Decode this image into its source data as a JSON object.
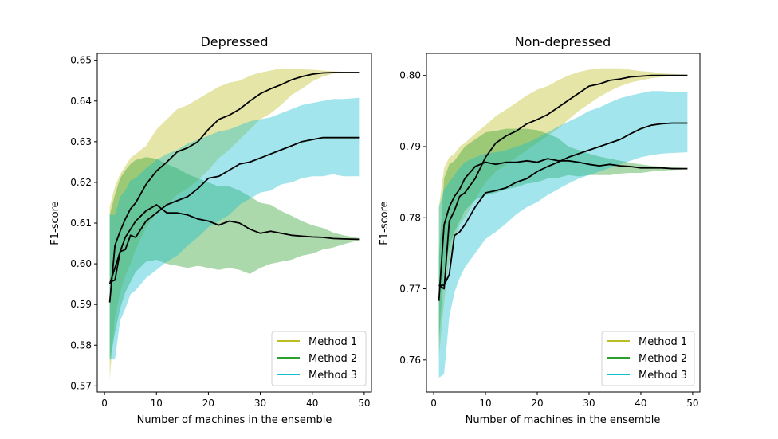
{
  "chart_data": [
    {
      "type": "line",
      "title": "Depressed",
      "xlabel": "Number of machines in the ensemble",
      "ylabel": "F1-score",
      "xlim": [
        -1.4,
        51.4
      ],
      "ylim": [
        0.5685,
        0.6517
      ],
      "xticks": [
        0,
        10,
        20,
        30,
        40,
        50
      ],
      "yticks": [
        0.57,
        0.58,
        0.59,
        0.6,
        0.61,
        0.62,
        0.63,
        0.64,
        0.65
      ],
      "ytick_labels": [
        "0.57",
        "0.58",
        "0.59",
        "0.60",
        "0.61",
        "0.62",
        "0.63",
        "0.64",
        "0.65"
      ],
      "legend_position": "lower-right",
      "series": [
        {
          "name": "Method 1",
          "color": "#bcbd22",
          "x": [
            1,
            2,
            3,
            4,
            5,
            6,
            8,
            10,
            12,
            14,
            16,
            18,
            20,
            22,
            24,
            26,
            28,
            30,
            32,
            34,
            36,
            38,
            40,
            42,
            44,
            46,
            49
          ],
          "mean": [
            0.5905,
            0.6045,
            0.608,
            0.611,
            0.6135,
            0.615,
            0.6195,
            0.6228,
            0.625,
            0.6275,
            0.6285,
            0.63,
            0.633,
            0.6355,
            0.6365,
            0.638,
            0.64,
            0.6418,
            0.643,
            0.644,
            0.6452,
            0.646,
            0.6466,
            0.6469,
            0.647,
            0.647,
            0.647
          ],
          "lower": [
            0.5715,
            0.587,
            0.593,
            0.597,
            0.6,
            0.6035,
            0.609,
            0.6125,
            0.6145,
            0.617,
            0.6185,
            0.6205,
            0.623,
            0.626,
            0.628,
            0.6305,
            0.633,
            0.6355,
            0.637,
            0.639,
            0.6415,
            0.643,
            0.6448,
            0.646,
            0.6467,
            0.6469,
            0.647
          ],
          "upper": [
            0.614,
            0.619,
            0.622,
            0.624,
            0.626,
            0.627,
            0.629,
            0.633,
            0.6355,
            0.638,
            0.639,
            0.6405,
            0.642,
            0.6435,
            0.6445,
            0.645,
            0.6462,
            0.647,
            0.6475,
            0.648,
            0.648,
            0.6478,
            0.6477,
            0.6475,
            0.6473,
            0.6472,
            0.6471
          ]
        },
        {
          "name": "Method 2",
          "color": "#2ca02c",
          "x": [
            1,
            2,
            3,
            4,
            5,
            6,
            8,
            10,
            12,
            14,
            16,
            18,
            20,
            22,
            24,
            26,
            28,
            30,
            32,
            34,
            36,
            38,
            40,
            42,
            44,
            46,
            49
          ],
          "mean": [
            0.595,
            0.599,
            0.603,
            0.6065,
            0.6085,
            0.6105,
            0.613,
            0.6145,
            0.6125,
            0.6125,
            0.612,
            0.611,
            0.6105,
            0.6095,
            0.6105,
            0.61,
            0.6085,
            0.6075,
            0.608,
            0.6075,
            0.607,
            0.6068,
            0.6066,
            0.6065,
            0.6062,
            0.6061,
            0.606
          ],
          "lower": [
            0.576,
            0.583,
            0.589,
            0.593,
            0.5955,
            0.598,
            0.6005,
            0.601,
            0.6,
            0.5995,
            0.599,
            0.5995,
            0.599,
            0.5985,
            0.599,
            0.5985,
            0.5975,
            0.599,
            0.6,
            0.6005,
            0.601,
            0.602,
            0.6025,
            0.6035,
            0.604,
            0.6048,
            0.6058
          ],
          "upper": [
            0.612,
            0.617,
            0.621,
            0.623,
            0.6245,
            0.6255,
            0.6262,
            0.6258,
            0.6245,
            0.6235,
            0.622,
            0.621,
            0.62,
            0.619,
            0.619,
            0.618,
            0.6165,
            0.615,
            0.6145,
            0.613,
            0.6118,
            0.6105,
            0.6095,
            0.6088,
            0.6077,
            0.607,
            0.6063
          ]
        },
        {
          "name": "Method 3",
          "color": "#17becf",
          "x": [
            1,
            2,
            3,
            4,
            5,
            6,
            8,
            10,
            12,
            14,
            16,
            18,
            20,
            22,
            24,
            26,
            28,
            30,
            32,
            34,
            36,
            38,
            40,
            42,
            44,
            46,
            49
          ],
          "mean": [
            0.5955,
            0.596,
            0.603,
            0.6035,
            0.607,
            0.6065,
            0.6105,
            0.6125,
            0.6145,
            0.6155,
            0.6165,
            0.6185,
            0.621,
            0.6215,
            0.623,
            0.6245,
            0.625,
            0.626,
            0.627,
            0.628,
            0.629,
            0.63,
            0.6305,
            0.631,
            0.631,
            0.631,
            0.631
          ],
          "lower": [
            0.5765,
            0.5765,
            0.586,
            0.589,
            0.5925,
            0.5935,
            0.5965,
            0.5985,
            0.6005,
            0.602,
            0.6045,
            0.6065,
            0.609,
            0.6105,
            0.612,
            0.6145,
            0.616,
            0.6175,
            0.618,
            0.6195,
            0.62,
            0.621,
            0.6215,
            0.6215,
            0.622,
            0.6215,
            0.6215
          ],
          "upper": [
            0.612,
            0.612,
            0.6165,
            0.618,
            0.6205,
            0.621,
            0.6235,
            0.6255,
            0.627,
            0.628,
            0.6295,
            0.6305,
            0.6315,
            0.6325,
            0.633,
            0.634,
            0.635,
            0.6355,
            0.636,
            0.637,
            0.638,
            0.639,
            0.6395,
            0.64,
            0.6405,
            0.6405,
            0.6408
          ]
        }
      ]
    },
    {
      "type": "line",
      "title": "Non-depressed",
      "xlabel": "Number of machines in the ensemble",
      "ylabel": "F1-score",
      "xlim": [
        -1.4,
        51.4
      ],
      "ylim": [
        0.7555,
        0.8031
      ],
      "xticks": [
        0,
        10,
        20,
        30,
        40,
        50
      ],
      "yticks": [
        0.76,
        0.77,
        0.78,
        0.79,
        0.8
      ],
      "ytick_labels": [
        "0.76",
        "0.77",
        "0.78",
        "0.79",
        "0.80"
      ],
      "legend_position": "lower-right",
      "series": [
        {
          "name": "Method 1",
          "color": "#bcbd22",
          "x": [
            1,
            2,
            3,
            4,
            5,
            6,
            8,
            10,
            12,
            14,
            16,
            18,
            20,
            22,
            24,
            26,
            28,
            30,
            32,
            34,
            36,
            38,
            40,
            42,
            44,
            46,
            49
          ],
          "mean": [
            0.7705,
            0.77,
            0.7795,
            0.781,
            0.783,
            0.7835,
            0.7855,
            0.7885,
            0.7905,
            0.7915,
            0.7922,
            0.7932,
            0.7938,
            0.7945,
            0.7955,
            0.7965,
            0.7975,
            0.7985,
            0.7988,
            0.7993,
            0.7995,
            0.7998,
            0.7999,
            0.8,
            0.8,
            0.8,
            0.8
          ],
          "lower": [
            0.7605,
            0.768,
            0.774,
            0.777,
            0.779,
            0.78,
            0.7825,
            0.785,
            0.7865,
            0.7875,
            0.7885,
            0.7895,
            0.7905,
            0.7915,
            0.7925,
            0.7938,
            0.795,
            0.796,
            0.797,
            0.7978,
            0.7985,
            0.799,
            0.7993,
            0.7996,
            0.7998,
            0.7999,
            0.8
          ],
          "upper": [
            0.7815,
            0.787,
            0.7885,
            0.789,
            0.79,
            0.7905,
            0.7918,
            0.793,
            0.7943,
            0.7952,
            0.7962,
            0.7972,
            0.798,
            0.7985,
            0.7993,
            0.8,
            0.8005,
            0.8008,
            0.801,
            0.801,
            0.801,
            0.8008,
            0.8006,
            0.8005,
            0.8003,
            0.8002,
            0.8001
          ]
        },
        {
          "name": "Method 2",
          "color": "#2ca02c",
          "x": [
            1,
            2,
            3,
            4,
            5,
            6,
            8,
            10,
            12,
            14,
            16,
            18,
            20,
            22,
            24,
            26,
            28,
            30,
            32,
            34,
            36,
            38,
            40,
            42,
            44,
            46,
            49
          ],
          "mean": [
            0.7683,
            0.779,
            0.7815,
            0.783,
            0.784,
            0.7855,
            0.7872,
            0.7878,
            0.7875,
            0.7878,
            0.7878,
            0.788,
            0.7878,
            0.7883,
            0.788,
            0.788,
            0.7878,
            0.7875,
            0.7873,
            0.7875,
            0.7873,
            0.7872,
            0.787,
            0.787,
            0.787,
            0.7869,
            0.7869
          ],
          "lower": [
            0.7625,
            0.7725,
            0.776,
            0.778,
            0.7795,
            0.781,
            0.7825,
            0.7832,
            0.7835,
            0.784,
            0.7843,
            0.7848,
            0.785,
            0.7855,
            0.7856,
            0.786,
            0.7858,
            0.786,
            0.786,
            0.786,
            0.7862,
            0.7863,
            0.7863,
            0.7865,
            0.7866,
            0.7867,
            0.7868
          ],
          "upper": [
            0.7745,
            0.7855,
            0.7875,
            0.788,
            0.789,
            0.79,
            0.791,
            0.792,
            0.7922,
            0.7925,
            0.7925,
            0.7925,
            0.7923,
            0.7918,
            0.7912,
            0.79,
            0.7895,
            0.789,
            0.7886,
            0.7883,
            0.788,
            0.7877,
            0.7875,
            0.7873,
            0.7872,
            0.7871,
            0.787
          ]
        },
        {
          "name": "Method 3",
          "color": "#17becf",
          "x": [
            1,
            2,
            3,
            4,
            5,
            6,
            8,
            10,
            12,
            14,
            16,
            18,
            20,
            22,
            24,
            26,
            28,
            30,
            32,
            34,
            36,
            38,
            40,
            42,
            44,
            46,
            49
          ],
          "mean": [
            0.7705,
            0.7705,
            0.772,
            0.7775,
            0.778,
            0.779,
            0.7815,
            0.7835,
            0.7838,
            0.7842,
            0.785,
            0.7855,
            0.7865,
            0.7872,
            0.7878,
            0.7885,
            0.789,
            0.7895,
            0.79,
            0.7905,
            0.791,
            0.7918,
            0.7925,
            0.793,
            0.7932,
            0.7933,
            0.7933
          ],
          "lower": [
            0.7575,
            0.758,
            0.766,
            0.7695,
            0.7715,
            0.773,
            0.775,
            0.777,
            0.778,
            0.7792,
            0.7805,
            0.7815,
            0.7822,
            0.7832,
            0.784,
            0.7848,
            0.7855,
            0.786,
            0.7865,
            0.787,
            0.7875,
            0.788,
            0.7885,
            0.7888,
            0.789,
            0.7891,
            0.7892
          ],
          "upper": [
            0.7815,
            0.784,
            0.785,
            0.786,
            0.787,
            0.7878,
            0.7885,
            0.789,
            0.7892,
            0.7895,
            0.79,
            0.7905,
            0.7912,
            0.792,
            0.7928,
            0.7935,
            0.7942,
            0.795,
            0.7955,
            0.7962,
            0.7968,
            0.7972,
            0.7975,
            0.7978,
            0.7978,
            0.7977,
            0.7977
          ]
        }
      ]
    }
  ]
}
